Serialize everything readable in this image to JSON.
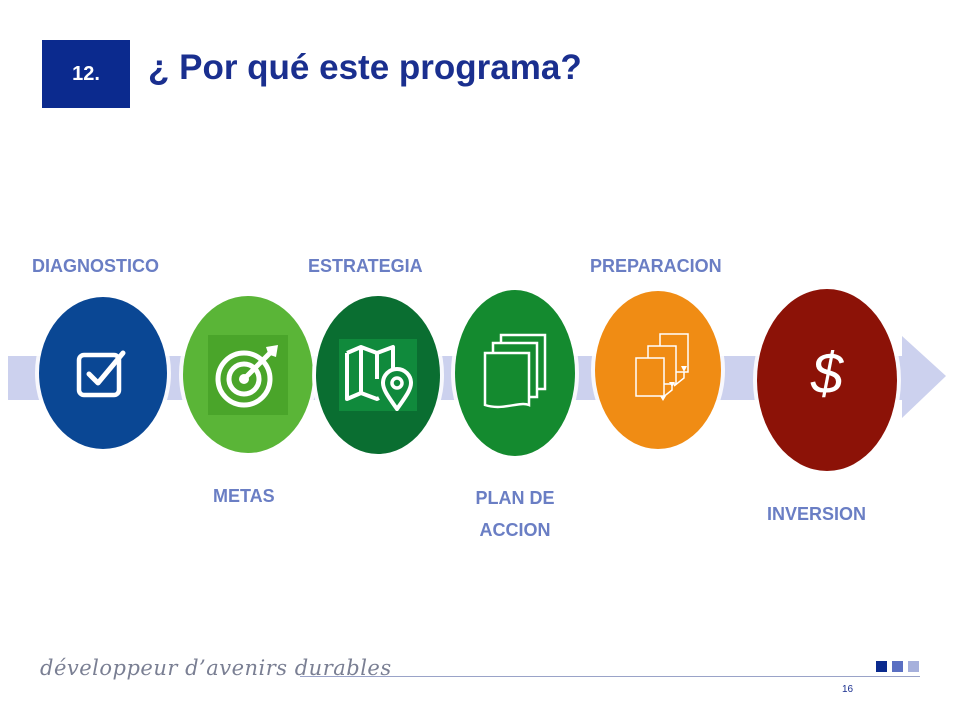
{
  "header": {
    "number": "12.",
    "title": "¿ Por qué este programa?"
  },
  "steps": [
    {
      "label": "DIAGNOSTICO",
      "icon": "checkbox-icon",
      "color": "#0a4794"
    },
    {
      "label": "METAS",
      "icon": "target-icon",
      "color": "#5ab537"
    },
    {
      "label": "ESTRATEGIA",
      "icon": "map-location-icon",
      "color": "#0a6e31"
    },
    {
      "label": "PLAN DE ACCION",
      "line1": "PLAN DE",
      "line2": "ACCION",
      "icon": "documents-icon",
      "color": "#148a2f"
    },
    {
      "label": "PREPARACION",
      "icon": "flowchart-pages-icon",
      "color": "#f08c14"
    },
    {
      "label": "INVERSION",
      "icon": "dollar-icon",
      "symbol": "$",
      "color": "#8c1207"
    }
  ],
  "footer": {
    "tagline": "développeur d’avenirs durables",
    "page": "16"
  },
  "colors": {
    "brand_blue": "#0b2a8e",
    "band": "#ccd1ee",
    "label": "#6a7ec4"
  }
}
